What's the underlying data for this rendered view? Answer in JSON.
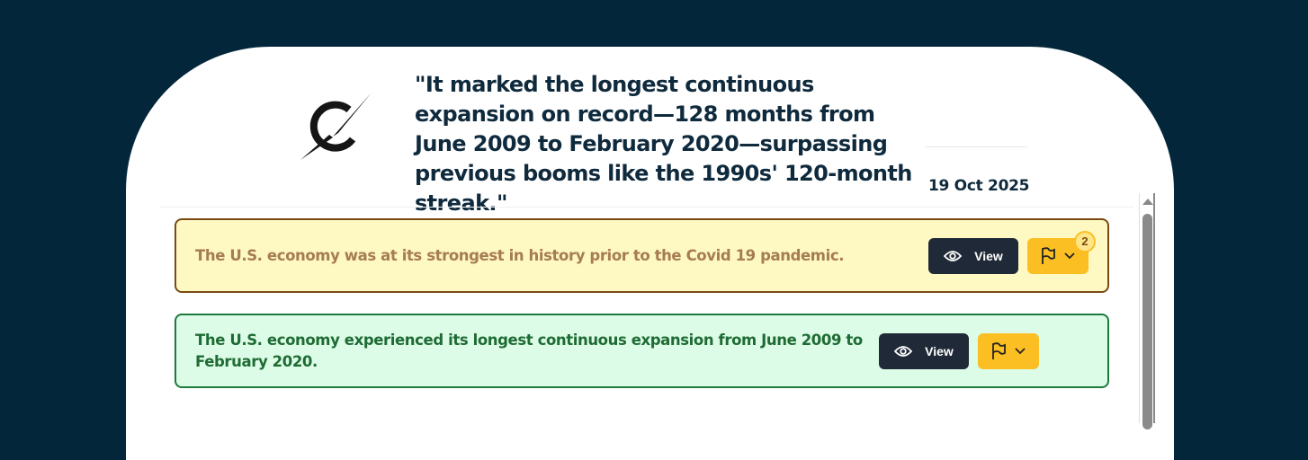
{
  "header": {
    "quote": "\"It marked the longest continuous expansion on record—128 months from June 2009 to February 2020—surpassing previous booms like the 1990s' 120-month streak.\"",
    "date": "19 Oct 2025",
    "logo_icon": "logo-icon"
  },
  "claims": [
    {
      "text": "The U.S. economy was at its strongest in history prior to the Covid 19 pandemic.",
      "view_label": "View",
      "flag_count": "2",
      "status_color": "#fef8c3"
    },
    {
      "text": "The U.S. economy experienced its longest continuous expansion from June 2009 to February 2020.",
      "view_label": "View",
      "status_color": "#dcfce7"
    }
  ]
}
